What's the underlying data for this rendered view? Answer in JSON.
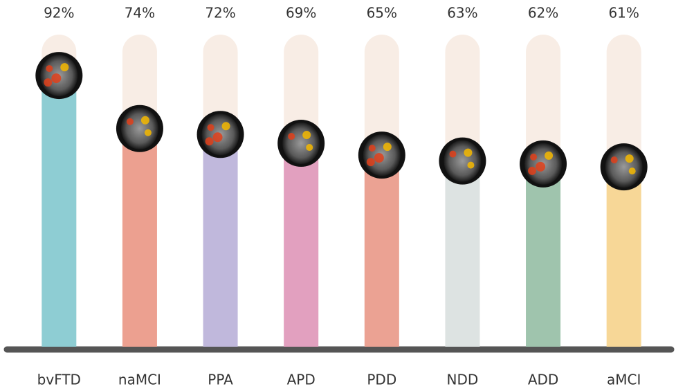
{
  "chart_data": {
    "type": "bar",
    "categories": [
      "bvFTD",
      "naMCI",
      "PPA",
      "APD",
      "PDD",
      "NDD",
      "ADD",
      "aMCI"
    ],
    "values": [
      92,
      74,
      72,
      69,
      65,
      63,
      62,
      61
    ],
    "value_labels": [
      "92%",
      "74%",
      "72%",
      "69%",
      "65%",
      "63%",
      "62%",
      "61%"
    ],
    "colors": [
      "#8ecdd3",
      "#eca090",
      "#c0b8dc",
      "#e2a0bf",
      "#eba293",
      "#dde3e2",
      "#9fc4ad",
      "#f7d797"
    ],
    "track_color": "#f8ede5",
    "ylim": [
      0,
      100
    ]
  }
}
